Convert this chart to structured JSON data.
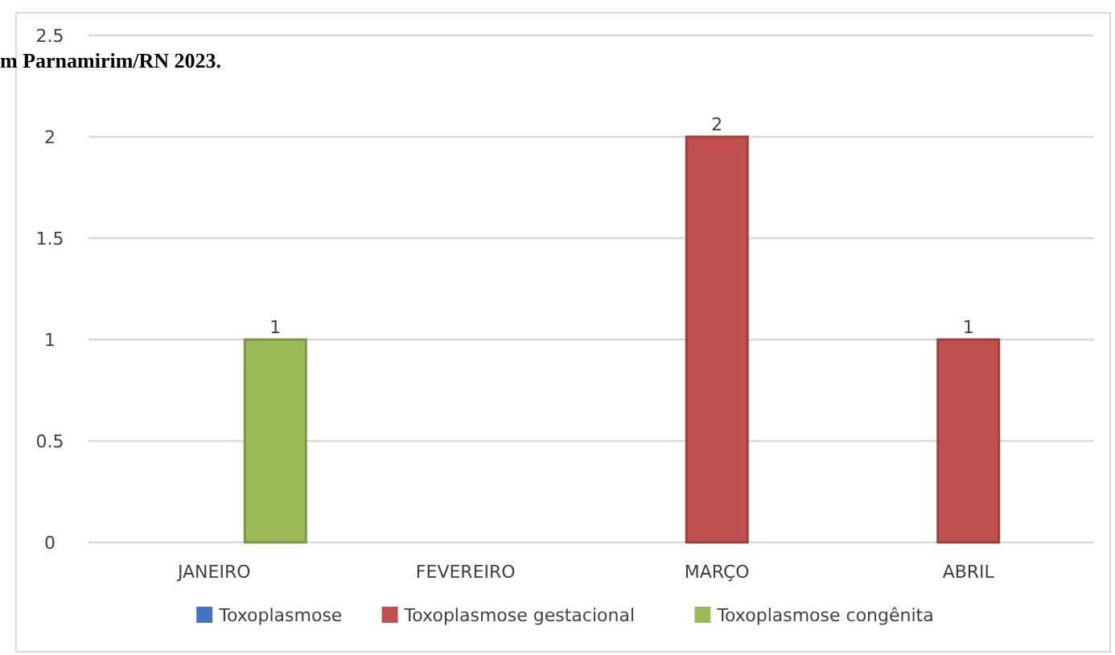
{
  "chart_data": {
    "type": "bar",
    "title": "m Parnamirim/RN 2023.",
    "categories": [
      "JANEIRO",
      "FEVEREIRO",
      "MARÇO",
      "ABRIL"
    ],
    "series": [
      {
        "name": "Toxoplasmose",
        "color": "#4472c4",
        "values": [
          null,
          null,
          null,
          null
        ]
      },
      {
        "name": "Toxoplasmose gestacional",
        "color": "#c0504d",
        "values": [
          null,
          null,
          2,
          1
        ]
      },
      {
        "name": "Toxoplasmose congênita",
        "color": "#9bbb59",
        "values": [
          1,
          null,
          null,
          null
        ]
      }
    ],
    "ylim": [
      0,
      2.5
    ],
    "yticks": [
      0,
      0.5,
      1,
      1.5,
      2,
      2.5
    ],
    "grid": "y",
    "legend": "bottom",
    "data_labels": true
  }
}
